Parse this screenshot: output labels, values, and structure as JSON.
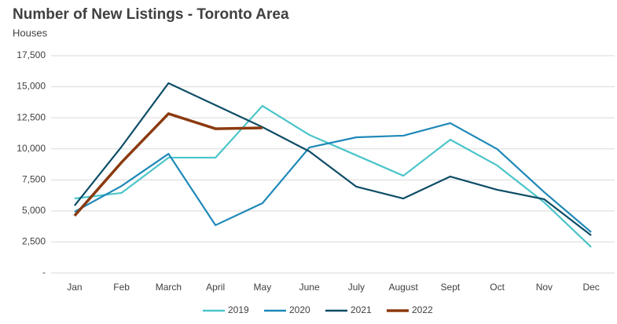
{
  "chart_data": {
    "type": "line",
    "title": "Number of New Listings - Toronto Area",
    "subtitle": "Houses",
    "categories": [
      "Jan",
      "Feb",
      "March",
      "April",
      "May",
      "June",
      "July",
      "August",
      "Sept",
      "Oct",
      "Nov",
      "Dec"
    ],
    "series": [
      {
        "name": "2019",
        "color": "#4bc5c9",
        "values": [
          6000,
          6450,
          9290,
          9290,
          13460,
          11120,
          9480,
          7830,
          10740,
          8660,
          5690,
          2090
        ]
      },
      {
        "name": "2020",
        "color": "#1e88b8",
        "values": [
          4930,
          7010,
          9600,
          3850,
          5620,
          10110,
          10930,
          11060,
          12070,
          9980,
          6510,
          3290
        ]
      },
      {
        "name": "2021",
        "color": "#0d4d66",
        "values": [
          5430,
          10170,
          15290,
          13520,
          11750,
          9790,
          6950,
          6000,
          7770,
          6700,
          5940,
          3030
        ]
      },
      {
        "name": "2022",
        "color": "#8b3a0f",
        "values": [
          4610,
          8910,
          12830,
          11620,
          11690,
          null,
          null,
          null,
          null,
          null,
          null,
          null
        ]
      }
    ],
    "ylim": [
      0,
      17500
    ],
    "yticks": [
      {
        "value": 0,
        "label": "-"
      },
      {
        "value": 2500,
        "label": "2,500"
      },
      {
        "value": 5000,
        "label": "5,000"
      },
      {
        "value": 7500,
        "label": "7,500"
      },
      {
        "value": 10000,
        "label": "10,000"
      },
      {
        "value": 12500,
        "label": "12,500"
      },
      {
        "value": 15000,
        "label": "15,000"
      },
      {
        "value": 17500,
        "label": "17,500"
      }
    ],
    "grid": true,
    "legend": "bottom"
  }
}
